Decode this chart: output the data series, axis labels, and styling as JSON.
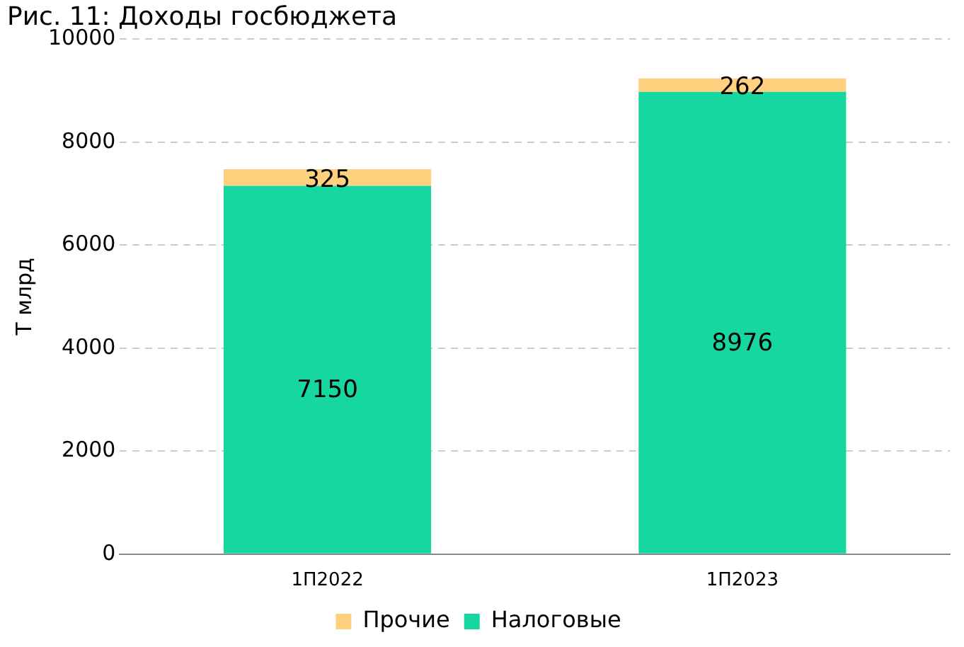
{
  "chart_data": {
    "type": "bar",
    "title": "Рис. 11: Доходы госбюджета",
    "ylabel": "Т млрд",
    "categories": [
      "1П2022",
      "1П2023"
    ],
    "stacked": true,
    "series": [
      {
        "name": "Налоговые",
        "color": "#17d7a0",
        "values": [
          7150,
          8976
        ]
      },
      {
        "name": "Прочие",
        "color": "#ffd17f",
        "values": [
          325,
          262
        ]
      }
    ],
    "ylim": [
      0,
      10000
    ],
    "yticks": [
      0,
      2000,
      4000,
      6000,
      8000,
      10000
    ],
    "grid": "y",
    "legend": "bottom",
    "data_labels": true
  }
}
